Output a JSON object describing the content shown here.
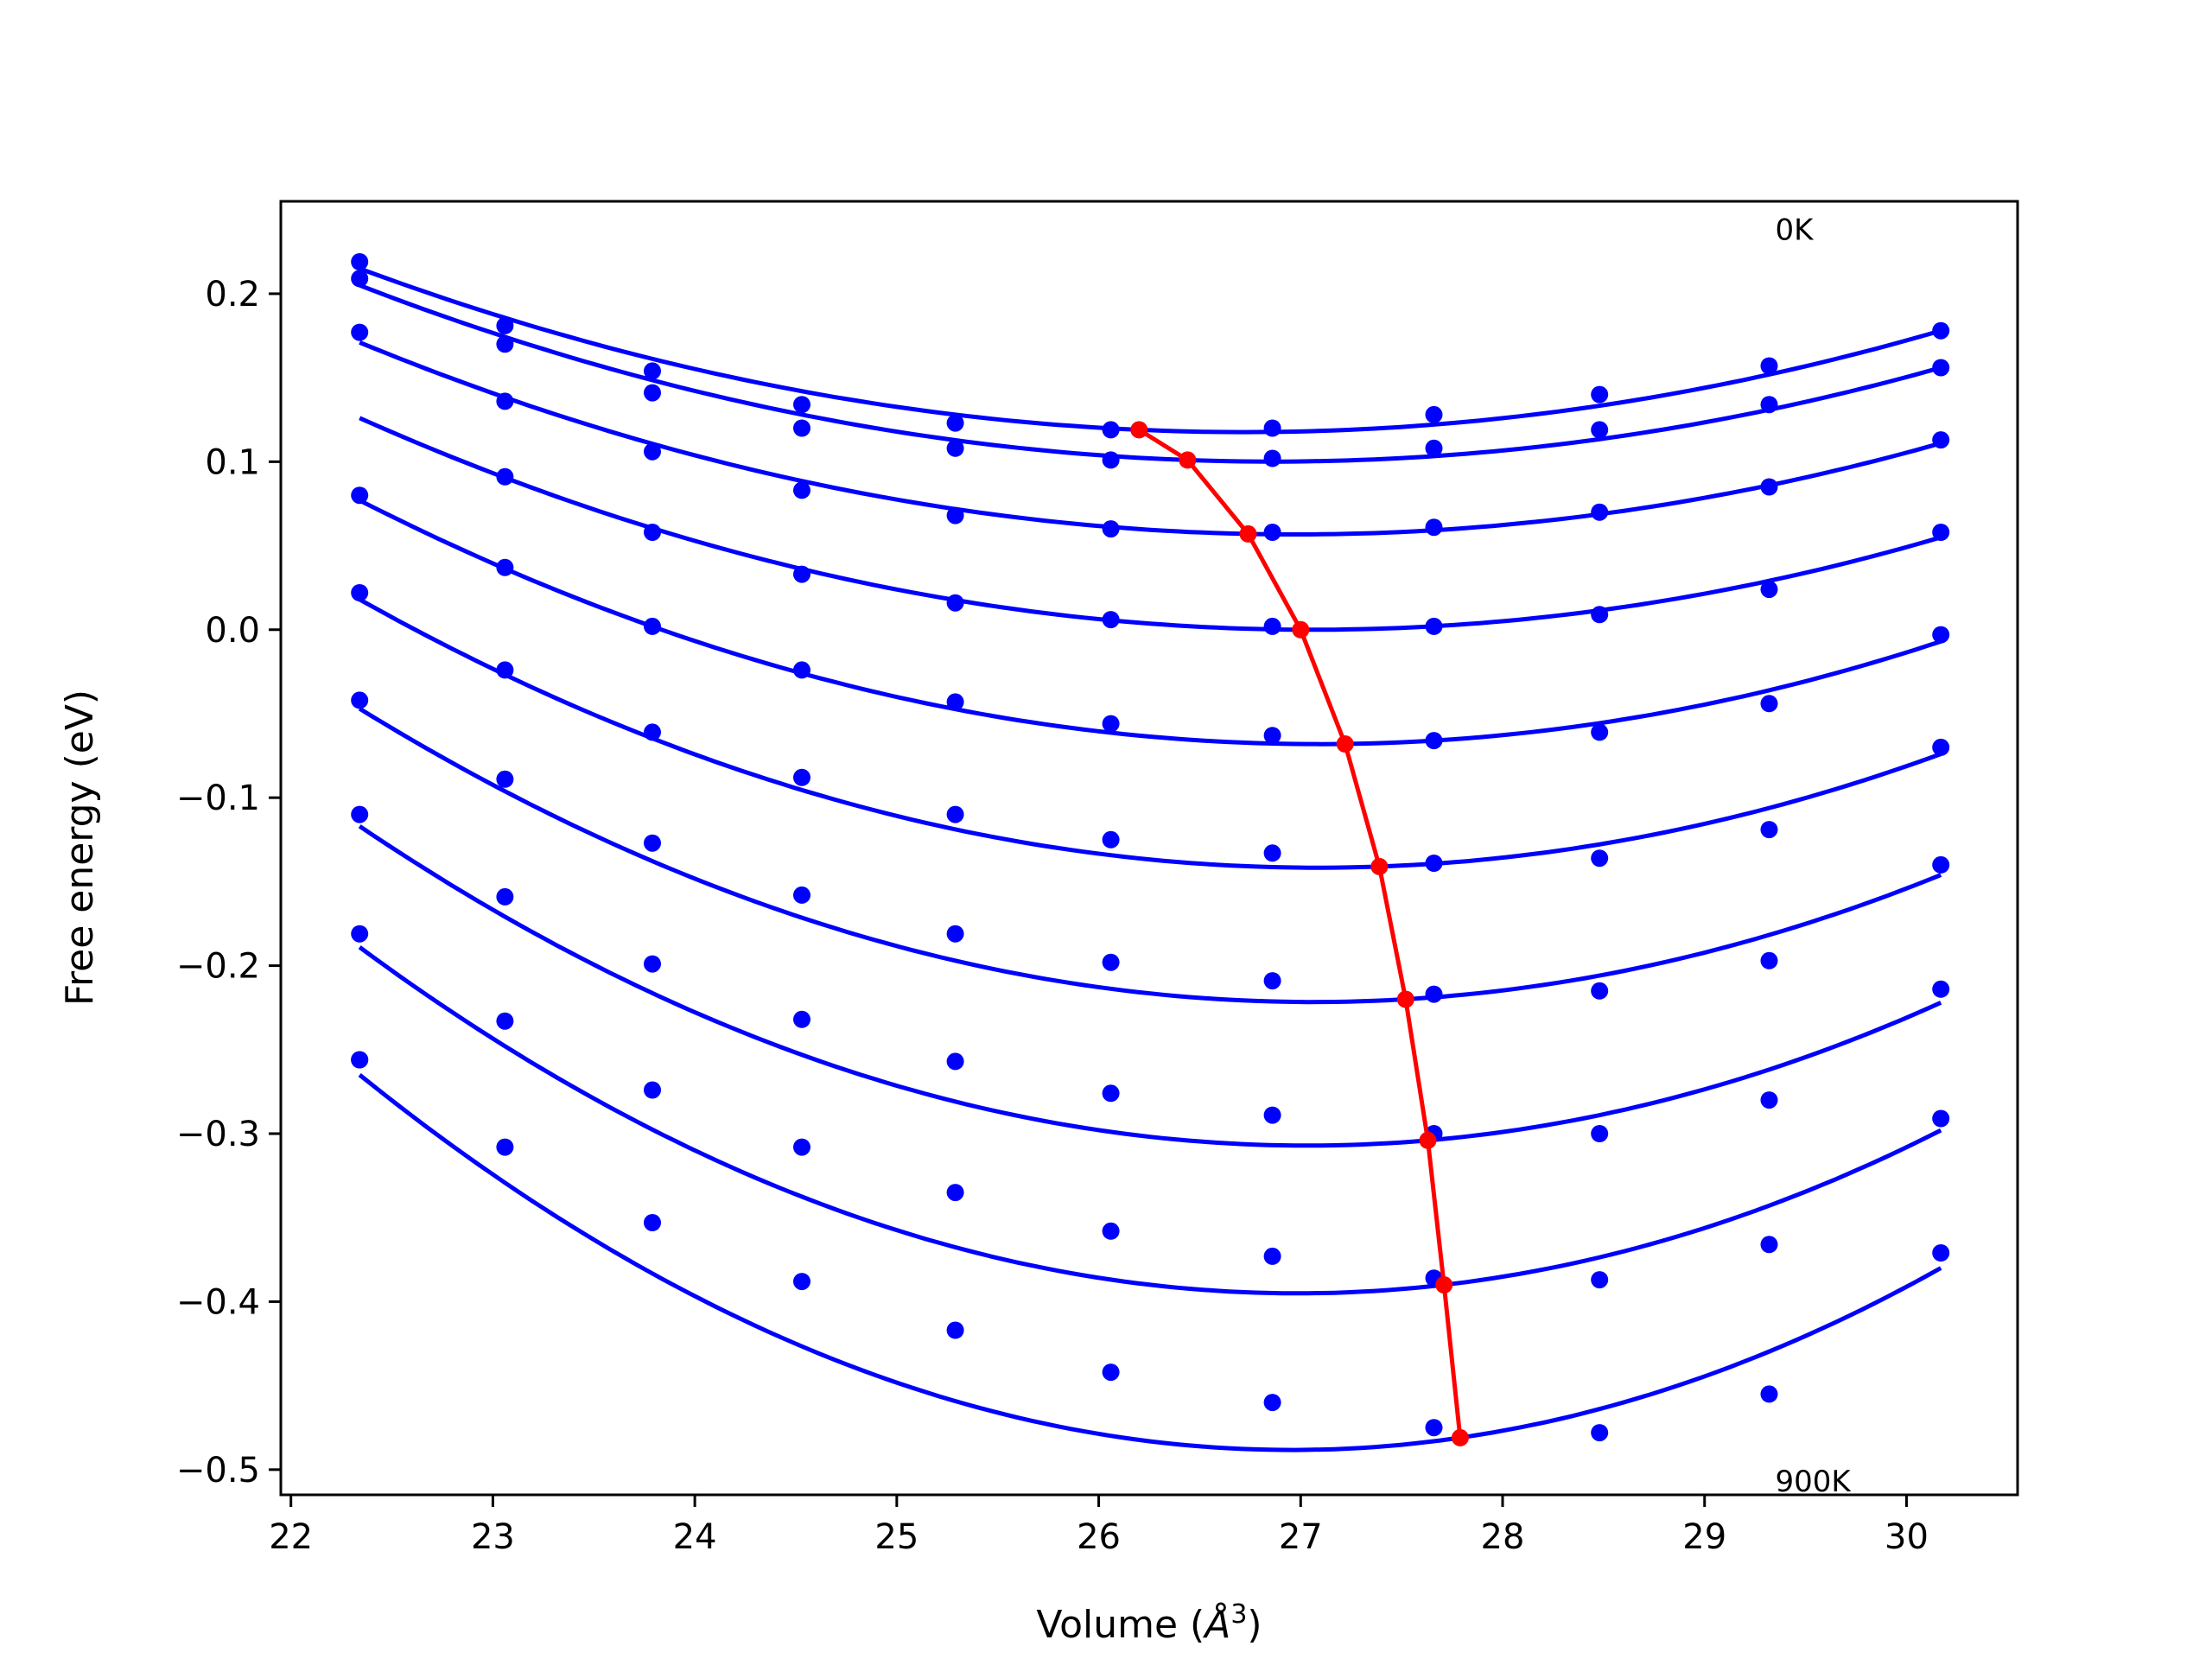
{
  "chart_data": {
    "type": "line",
    "xlabel": "Volume",
    "xlabel_unit_base": "Å",
    "xlabel_unit_exp": "3",
    "ylabel": "Free energy (eV)",
    "xlim": [
      21.95,
      30.55
    ],
    "ylim": [
      -0.515,
      0.255
    ],
    "xticks": [
      22,
      23,
      24,
      25,
      26,
      27,
      28,
      29,
      30
    ],
    "yticks": [
      0.2,
      0.1,
      0.0,
      -0.1,
      -0.2,
      -0.3,
      -0.4,
      -0.5
    ],
    "xtick_labels": [
      "22",
      "23",
      "24",
      "25",
      "26",
      "27",
      "28",
      "29",
      "30"
    ],
    "ytick_labels": [
      "0.2",
      "0.1",
      "0.0",
      "−0.1",
      "−0.2",
      "−0.3",
      "−0.4",
      "−0.5"
    ],
    "grid": false,
    "annotations": [
      {
        "text": "0K",
        "x": 29.35,
        "y": 0.232
      },
      {
        "text": "900K",
        "x": 29.35,
        "y": -0.513
      }
    ],
    "volumes": [
      22.34,
      23.06,
      23.79,
      24.53,
      25.29,
      26.06,
      26.86,
      27.66,
      28.48,
      29.32,
      30.17
    ],
    "series": [
      {
        "values": [
          0.219,
          0.181,
          0.154,
          0.134,
          0.123,
          0.119,
          0.12,
          0.128,
          0.14,
          0.157,
          0.178
        ],
        "min_volume": 26.2,
        "min_energy": 0.119
      },
      {
        "values": [
          0.209,
          0.17,
          0.141,
          0.12,
          0.108,
          0.101,
          0.102,
          0.108,
          0.119,
          0.134,
          0.156
        ],
        "min_volume": 26.44,
        "min_energy": 0.101
      },
      {
        "values": [
          0.177,
          0.136,
          0.106,
          0.083,
          0.068,
          0.06,
          0.058,
          0.061,
          0.07,
          0.085,
          0.113
        ],
        "min_volume": 26.74,
        "min_energy": 0.057
      },
      {
        "values": [
          0.08,
          0.091,
          0.058,
          0.033,
          0.016,
          0.006,
          0.002,
          0.002,
          0.009,
          0.024,
          0.058
        ],
        "min_volume": 27.0,
        "min_energy": 0.0
      },
      {
        "values": [
          0.022,
          0.037,
          0.002,
          -0.024,
          -0.043,
          -0.056,
          -0.063,
          -0.066,
          -0.061,
          -0.044,
          -0.003
        ],
        "min_volume": 27.22,
        "min_energy": -0.068
      },
      {
        "values": [
          -0.042,
          -0.024,
          -0.061,
          -0.088,
          -0.11,
          -0.125,
          -0.133,
          -0.139,
          -0.136,
          -0.119,
          -0.07
        ],
        "min_volume": 27.39,
        "min_energy": -0.141
      },
      {
        "values": [
          -0.11,
          -0.089,
          -0.127,
          -0.158,
          -0.181,
          -0.198,
          -0.209,
          -0.217,
          -0.215,
          -0.197,
          -0.14
        ],
        "min_volume": 27.52,
        "min_energy": -0.22
      },
      {
        "values": [
          -0.181,
          -0.159,
          -0.199,
          -0.232,
          -0.257,
          -0.276,
          -0.289,
          -0.3,
          -0.3,
          -0.28,
          -0.214
        ],
        "min_volume": 27.63,
        "min_energy": -0.304
      },
      {
        "values": [
          -0.256,
          -0.233,
          -0.274,
          -0.308,
          -0.335,
          -0.358,
          -0.373,
          -0.386,
          -0.387,
          -0.366,
          -0.291
        ],
        "min_volume": 27.71,
        "min_energy": -0.39
      },
      {
        "values": [
          -0.256,
          -0.308,
          -0.353,
          -0.388,
          -0.417,
          -0.442,
          -0.46,
          -0.475,
          -0.478,
          -0.455,
          -0.371
        ],
        "min_volume": 27.79,
        "min_energy": -0.481
      }
    ],
    "fit_start_values": [
      0.215,
      0.205,
      0.171,
      0.126,
      0.077,
      0.018,
      -0.047,
      -0.117,
      -0.189,
      -0.265
    ],
    "fit_end_values": [
      0.178,
      0.156,
      0.111,
      0.055,
      -0.007,
      -0.074,
      -0.146,
      -0.222,
      -0.298,
      -0.38
    ],
    "colors": {
      "fits": "#0000ff",
      "points": "#0000ff",
      "minima": "#ff0000",
      "frame": "#000000"
    }
  }
}
